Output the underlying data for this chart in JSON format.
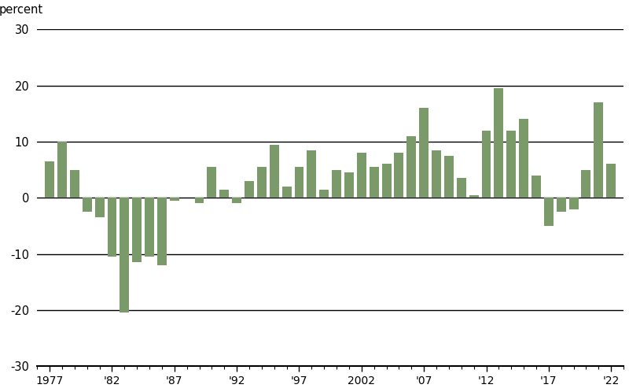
{
  "years": [
    1977,
    1978,
    1979,
    1980,
    1981,
    1982,
    1983,
    1984,
    1985,
    1986,
    1987,
    1988,
    1989,
    1990,
    1991,
    1992,
    1993,
    1994,
    1995,
    1996,
    1997,
    1998,
    1999,
    2000,
    2001,
    2002,
    2003,
    2004,
    2005,
    2006,
    2007,
    2008,
    2009,
    2010,
    2011,
    2012,
    2013,
    2014,
    2015,
    2016,
    2017,
    2018,
    2019,
    2020,
    2021,
    2022
  ],
  "values": [
    6.5,
    10.0,
    5.0,
    -2.5,
    -3.5,
    -10.5,
    -20.5,
    -11.5,
    -10.5,
    -12.0,
    -0.5,
    0.0,
    -1.0,
    5.5,
    1.5,
    -1.0,
    3.0,
    5.5,
    9.5,
    2.0,
    5.5,
    8.5,
    1.5,
    5.0,
    4.5,
    8.0,
    5.5,
    6.0,
    8.0,
    11.0,
    16.0,
    8.5,
    7.5,
    3.5,
    0.5,
    12.0,
    19.5,
    12.0,
    14.0,
    4.0,
    -5.0,
    -2.5,
    -2.0,
    5.0,
    17.0,
    6.0
  ],
  "bar_color": "#7a9a6a",
  "ylabel": "percent",
  "ylim": [
    -30,
    30
  ],
  "yticks": [
    -30,
    -20,
    -10,
    0,
    10,
    20,
    30
  ],
  "ytick_labels": [
    "-30",
    "-20",
    "-10",
    "0",
    "10",
    "20",
    "30"
  ],
  "xtick_years": [
    1977,
    1982,
    1987,
    1992,
    1997,
    2002,
    2007,
    2012,
    2017,
    2022
  ],
  "xtick_labels": [
    "1977",
    "'82",
    "'87",
    "'92",
    "'97",
    "2002",
    "'07",
    "'12",
    "'17",
    "'22"
  ],
  "background_color": "#ffffff",
  "grid_color": "#000000",
  "spine_color": "#000000"
}
